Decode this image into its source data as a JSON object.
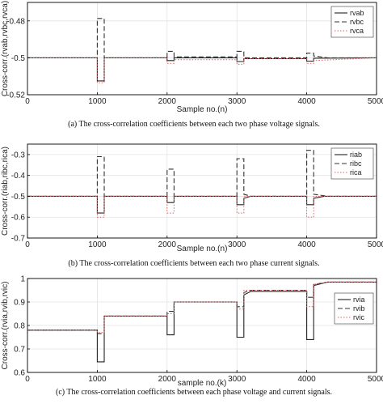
{
  "figure": {
    "captions": [
      "(a) The cross-correlation coefficients between each two phase voltage signals.",
      "(b) The cross-correlation coefficients between each two phase current signals.",
      "(c) The cross-correlation coefficients between each phase voltage and current signals."
    ]
  },
  "colors": {
    "series_1": "#222222",
    "series_2": "#333333",
    "series_3": "#e06060",
    "axis": "#000000"
  },
  "chart_data": [
    {
      "type": "line",
      "ylabel": "Cross-corr.(rvab,rvbc,rvca)",
      "xlabel": "Sample no.(n)",
      "xlim": [
        0,
        5000
      ],
      "ylim": [
        -0.52,
        -0.47
      ],
      "xticks": [
        0,
        1000,
        2000,
        3000,
        4000,
        5000
      ],
      "yticks": [
        -0.52,
        -0.5,
        -0.48
      ],
      "ytick_labels": [
        "-0.52",
        "-0.5",
        "-0.48"
      ],
      "grid": true,
      "legend_position": "top-right",
      "series": [
        {
          "name": "rvab",
          "style": "solid",
          "points": [
            [
              0,
              -0.5
            ],
            [
              1000,
              -0.5
            ],
            [
              1000,
              -0.5125
            ],
            [
              1100,
              -0.5125
            ],
            [
              1100,
              -0.5
            ],
            [
              2000,
              -0.5
            ],
            [
              2000,
              -0.5015
            ],
            [
              2100,
              -0.5015
            ],
            [
              2100,
              -0.5
            ],
            [
              3000,
              -0.5
            ],
            [
              3000,
              -0.502
            ],
            [
              3100,
              -0.502
            ],
            [
              3100,
              -0.5005
            ],
            [
              4000,
              -0.5005
            ],
            [
              4000,
              -0.5018
            ],
            [
              4100,
              -0.5018
            ],
            [
              4100,
              -0.5002
            ],
            [
              5000,
              -0.5
            ]
          ]
        },
        {
          "name": "rvbc",
          "style": "dashed",
          "points": [
            [
              0,
              -0.5
            ],
            [
              1000,
              -0.5
            ],
            [
              1000,
              -0.4787
            ],
            [
              1100,
              -0.4787
            ],
            [
              1100,
              -0.5
            ],
            [
              2000,
              -0.5
            ],
            [
              2000,
              -0.4965
            ],
            [
              2100,
              -0.4965
            ],
            [
              2100,
              -0.4995
            ],
            [
              3000,
              -0.4995
            ],
            [
              3000,
              -0.4965
            ],
            [
              3100,
              -0.4965
            ],
            [
              3100,
              -0.5
            ],
            [
              4000,
              -0.5
            ],
            [
              4000,
              -0.4975
            ],
            [
              4100,
              -0.4975
            ],
            [
              4100,
              -0.499
            ],
            [
              4300,
              -0.5
            ],
            [
              5000,
              -0.5
            ]
          ]
        },
        {
          "name": "rvca",
          "style": "dotted",
          "points": [
            [
              0,
              -0.5
            ],
            [
              1000,
              -0.5
            ],
            [
              1000,
              -0.5135
            ],
            [
              1100,
              -0.5135
            ],
            [
              1100,
              -0.5
            ],
            [
              2000,
              -0.5
            ],
            [
              2000,
              -0.503
            ],
            [
              2100,
              -0.503
            ],
            [
              2100,
              -0.501
            ],
            [
              3000,
              -0.501
            ],
            [
              3000,
              -0.5035
            ],
            [
              3100,
              -0.5035
            ],
            [
              3100,
              -0.5005
            ],
            [
              4000,
              -0.5005
            ],
            [
              4000,
              -0.503
            ],
            [
              4100,
              -0.503
            ],
            [
              4100,
              -0.5015
            ],
            [
              5000,
              -0.5
            ]
          ]
        }
      ]
    },
    {
      "type": "line",
      "ylabel": "Cross-corr.(riab,ribc,rica)",
      "xlabel": "Sample no.(n)",
      "xlim": [
        0,
        5000
      ],
      "ylim": [
        -0.7,
        -0.25
      ],
      "xticks": [
        0,
        1000,
        2000,
        3000,
        4000,
        5000
      ],
      "yticks": [
        -0.7,
        -0.6,
        -0.5,
        -0.4,
        -0.3
      ],
      "ytick_labels": [
        "-0.7",
        "-0.6",
        "-0.5",
        "-0.4",
        "-0.3"
      ],
      "grid": true,
      "legend_position": "top-right",
      "series": [
        {
          "name": "riab",
          "style": "solid",
          "points": [
            [
              0,
              -0.5
            ],
            [
              1000,
              -0.5
            ],
            [
              1000,
              -0.58
            ],
            [
              1100,
              -0.58
            ],
            [
              1100,
              -0.5
            ],
            [
              2000,
              -0.5
            ],
            [
              2000,
              -0.53
            ],
            [
              2100,
              -0.53
            ],
            [
              2100,
              -0.5
            ],
            [
              3000,
              -0.5
            ],
            [
              3000,
              -0.54
            ],
            [
              3100,
              -0.54
            ],
            [
              3100,
              -0.51
            ],
            [
              3200,
              -0.5
            ],
            [
              4000,
              -0.5
            ],
            [
              4000,
              -0.54
            ],
            [
              4100,
              -0.54
            ],
            [
              4100,
              -0.51
            ],
            [
              4250,
              -0.5
            ],
            [
              5000,
              -0.5
            ]
          ]
        },
        {
          "name": "ribc",
          "style": "dashed",
          "points": [
            [
              0,
              -0.5
            ],
            [
              1000,
              -0.5
            ],
            [
              1000,
              -0.31
            ],
            [
              1100,
              -0.31
            ],
            [
              1100,
              -0.5
            ],
            [
              2000,
              -0.5
            ],
            [
              2000,
              -0.37
            ],
            [
              2100,
              -0.37
            ],
            [
              2100,
              -0.5
            ],
            [
              3000,
              -0.5
            ],
            [
              3000,
              -0.32
            ],
            [
              3100,
              -0.32
            ],
            [
              3100,
              -0.49
            ],
            [
              3200,
              -0.5
            ],
            [
              4000,
              -0.5
            ],
            [
              4000,
              -0.28
            ],
            [
              4100,
              -0.28
            ],
            [
              4100,
              -0.49
            ],
            [
              4300,
              -0.5
            ],
            [
              5000,
              -0.5
            ]
          ]
        },
        {
          "name": "rica",
          "style": "dotted",
          "points": [
            [
              0,
              -0.5
            ],
            [
              1000,
              -0.5
            ],
            [
              1000,
              -0.6
            ],
            [
              1100,
              -0.6
            ],
            [
              1100,
              -0.5
            ],
            [
              2000,
              -0.5
            ],
            [
              2000,
              -0.58
            ],
            [
              2100,
              -0.58
            ],
            [
              2100,
              -0.5
            ],
            [
              3000,
              -0.5
            ],
            [
              3000,
              -0.58
            ],
            [
              3100,
              -0.58
            ],
            [
              3100,
              -0.5
            ],
            [
              4000,
              -0.5
            ],
            [
              4000,
              -0.6
            ],
            [
              4100,
              -0.6
            ],
            [
              4100,
              -0.5
            ],
            [
              5000,
              -0.5
            ]
          ]
        }
      ]
    },
    {
      "type": "line",
      "ylabel": "Cross-corr.(rvia,rvib,rvic)",
      "xlabel": "sample no.(k)",
      "xlim": [
        0,
        5000
      ],
      "ylim": [
        0.6,
        1.0
      ],
      "xticks": [
        0,
        1000,
        2000,
        3000,
        4000,
        5000
      ],
      "yticks": [
        0.6,
        0.7,
        0.8,
        0.9,
        1.0
      ],
      "ytick_labels": [
        "0.6",
        "0.7",
        "0.8",
        "0.9",
        "1"
      ],
      "grid": true,
      "legend_position": "right",
      "series": [
        {
          "name": "rvia",
          "style": "solid",
          "points": [
            [
              0,
              0.78
            ],
            [
              1000,
              0.78
            ],
            [
              1000,
              0.645
            ],
            [
              1100,
              0.645
            ],
            [
              1100,
              0.84
            ],
            [
              2000,
              0.84
            ],
            [
              2000,
              0.76
            ],
            [
              2100,
              0.76
            ],
            [
              2100,
              0.9
            ],
            [
              3000,
              0.9
            ],
            [
              3000,
              0.75
            ],
            [
              3100,
              0.75
            ],
            [
              3100,
              0.93
            ],
            [
              3200,
              0.945
            ],
            [
              4000,
              0.945
            ],
            [
              4000,
              0.74
            ],
            [
              4100,
              0.74
            ],
            [
              4100,
              0.97
            ],
            [
              4300,
              0.985
            ],
            [
              5000,
              0.985
            ]
          ]
        },
        {
          "name": "rvib",
          "style": "dashed",
          "points": [
            [
              0,
              0.78
            ],
            [
              1000,
              0.78
            ],
            [
              1000,
              0.765
            ],
            [
              1100,
              0.765
            ],
            [
              1100,
              0.84
            ],
            [
              2000,
              0.84
            ],
            [
              2000,
              0.86
            ],
            [
              2100,
              0.86
            ],
            [
              2100,
              0.9
            ],
            [
              3000,
              0.9
            ],
            [
              3000,
              0.88
            ],
            [
              3100,
              0.88
            ],
            [
              3100,
              0.94
            ],
            [
              3200,
              0.95
            ],
            [
              4000,
              0.95
            ],
            [
              4000,
              0.92
            ],
            [
              4100,
              0.92
            ],
            [
              4100,
              0.975
            ],
            [
              4300,
              0.985
            ],
            [
              5000,
              0.985
            ]
          ]
        },
        {
          "name": "rvic",
          "style": "dotted",
          "points": [
            [
              0,
              0.78
            ],
            [
              1000,
              0.78
            ],
            [
              1000,
              0.77
            ],
            [
              1100,
              0.77
            ],
            [
              1100,
              0.84
            ],
            [
              2000,
              0.84
            ],
            [
              2000,
              0.85
            ],
            [
              2100,
              0.85
            ],
            [
              2100,
              0.9
            ],
            [
              3000,
              0.9
            ],
            [
              3000,
              0.87
            ],
            [
              3100,
              0.87
            ],
            [
              3100,
              0.95
            ],
            [
              4000,
              0.95
            ],
            [
              4000,
              0.88
            ],
            [
              4100,
              0.88
            ],
            [
              4100,
              0.975
            ],
            [
              4300,
              0.985
            ],
            [
              5000,
              0.985
            ]
          ]
        }
      ]
    }
  ]
}
